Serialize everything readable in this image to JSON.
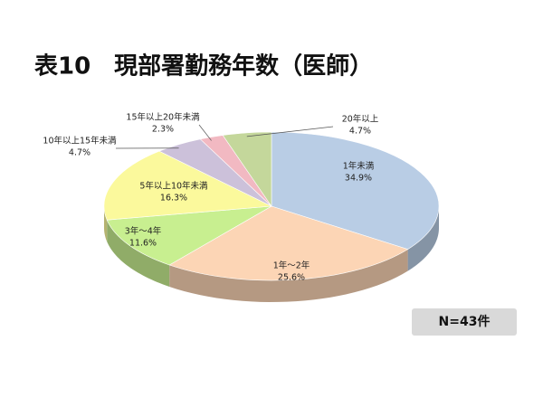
{
  "chart_data": {
    "type": "pie",
    "title": "表10　現部署勤務年数（医師）",
    "categories": [
      "1年未満",
      "1年～2年",
      "3年～4年",
      "5年以上10年未満",
      "10年以上15年未満",
      "15年以上20年未満",
      "20年以上"
    ],
    "values": [
      34.9,
      25.6,
      11.6,
      16.3,
      4.7,
      2.3,
      4.7
    ],
    "value_labels": [
      "34.9%",
      "25.6%",
      "11.6%",
      "16.3%",
      "4.7%",
      "2.3%",
      "4.7%"
    ],
    "colors": [
      "#b9cde5",
      "#fcd5b5",
      "#c8ef90",
      "#fbf99c",
      "#ccc1da",
      "#f2b9c2",
      "#c4d79b"
    ],
    "annotation": "N=43件"
  }
}
